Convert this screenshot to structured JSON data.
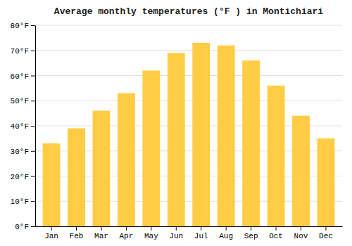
{
  "chart_data": {
    "type": "bar",
    "title": "Average monthly temperatures (°F ) in Montichiari",
    "categories": [
      "Jan",
      "Feb",
      "Mar",
      "Apr",
      "May",
      "Jun",
      "Jul",
      "Aug",
      "Sep",
      "Oct",
      "Nov",
      "Dec"
    ],
    "values": [
      33,
      39,
      46,
      53,
      62,
      69,
      73,
      72,
      66,
      56,
      44,
      35
    ],
    "color": "#FFCC44",
    "ylim": [
      0,
      80
    ],
    "yticks": [
      {
        "value": 0,
        "label": "0°F"
      },
      {
        "value": 10,
        "label": "10°F"
      },
      {
        "value": 20,
        "label": "20°F"
      },
      {
        "value": 30,
        "label": "30°F"
      },
      {
        "value": 40,
        "label": "40°F"
      },
      {
        "value": 50,
        "label": "50°F"
      },
      {
        "value": 60,
        "label": "60°F"
      },
      {
        "value": 70,
        "label": "70°F"
      },
      {
        "value": 80,
        "label": "80°F"
      }
    ],
    "grid": true
  }
}
